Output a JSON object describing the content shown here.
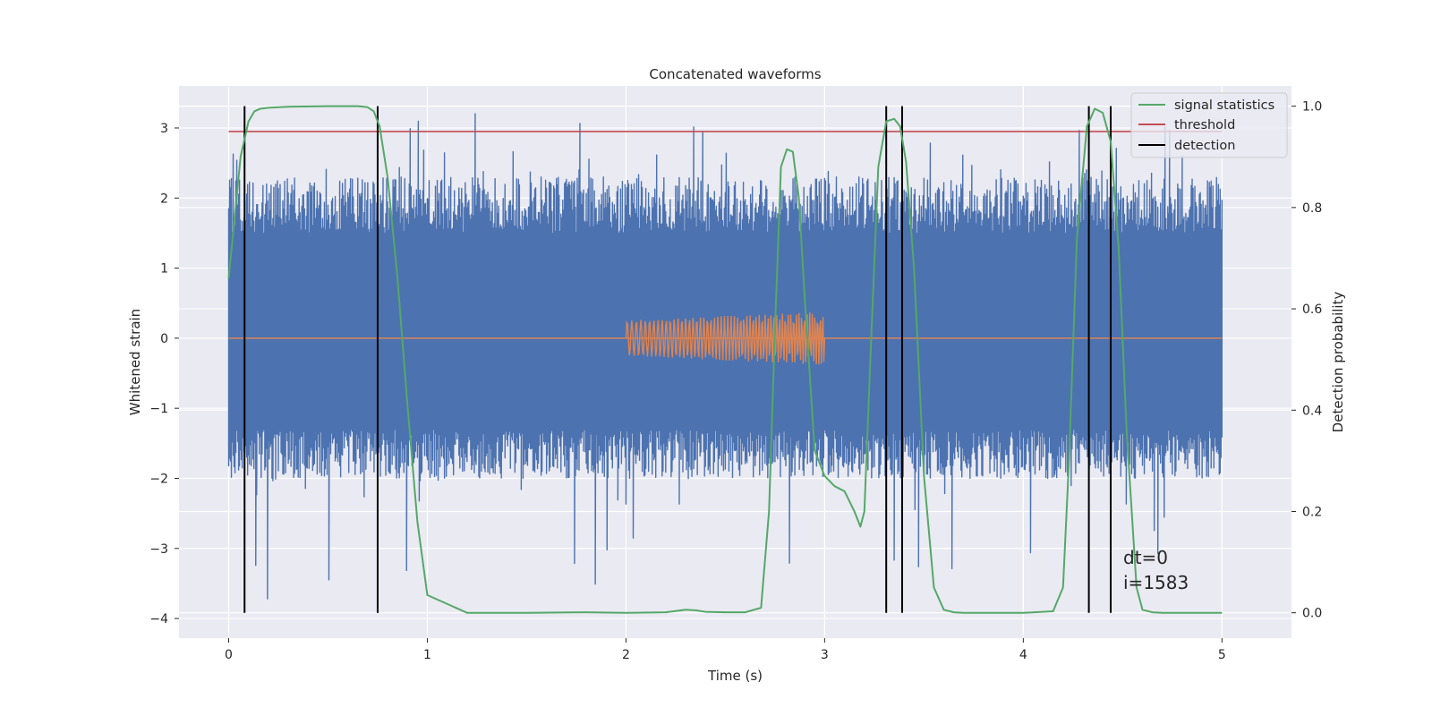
{
  "chart_data": {
    "type": "line",
    "title": "Concatenated waveforms",
    "xlabel": "Time (s)",
    "ylabel_left": "Whitened strain",
    "ylabel_right": "Detection probability",
    "xlim": [
      -0.25,
      5.35
    ],
    "ylim_left": [
      -4.28,
      3.6
    ],
    "ylim_right": [
      -0.05,
      1.04
    ],
    "x_ticks": [
      0,
      1,
      2,
      3,
      4,
      5
    ],
    "y_ticks_left": [
      -4,
      -3,
      -2,
      -1,
      0,
      1,
      2,
      3
    ],
    "y_ticks_right": [
      0.0,
      0.2,
      0.4,
      0.6,
      0.8,
      1.0
    ],
    "y_tick_labels_right": [
      "0.0",
      "0.2",
      "0.4",
      "0.6",
      "0.8",
      "1.0"
    ],
    "grid": true,
    "legend_position": "top-right",
    "legend": [
      {
        "label": "signal statistics",
        "color": "#55a868"
      },
      {
        "label": "threshold",
        "color": "#c44e52"
      },
      {
        "label": "detection",
        "color": "#000000"
      }
    ],
    "series": [
      {
        "name": "whitened strain (noise)",
        "axis": "left",
        "color": "#4c72b0",
        "x_range": [
          0,
          5
        ],
        "envelope_upper": 2.3,
        "envelope_lower": -2.0,
        "peak_max": 3.3,
        "peak_min": -3.9
      },
      {
        "name": "injected signal",
        "axis": "left",
        "color": "#dd8452",
        "x_range": [
          2.0,
          3.0
        ],
        "amplitude_start": 0.25,
        "amplitude_end": 0.38,
        "baseline_x": [
          0,
          5
        ],
        "baseline_y": 0
      },
      {
        "name": "signal statistics",
        "axis": "right",
        "color": "#55a868",
        "x": [
          0.0,
          0.03,
          0.06,
          0.1,
          0.13,
          0.16,
          0.2,
          0.3,
          0.5,
          0.65,
          0.7,
          0.73,
          0.76,
          0.8,
          0.85,
          0.9,
          0.95,
          1.0,
          1.2,
          1.5,
          1.8,
          2.0,
          2.2,
          2.3,
          2.35,
          2.4,
          2.5,
          2.6,
          2.68,
          2.72,
          2.75,
          2.78,
          2.81,
          2.84,
          2.87,
          2.9,
          2.95,
          3.0,
          3.05,
          3.1,
          3.15,
          3.18,
          3.2,
          3.23,
          3.27,
          3.31,
          3.35,
          3.38,
          3.41,
          3.45,
          3.5,
          3.55,
          3.6,
          3.65,
          3.7,
          4.0,
          4.15,
          4.2,
          4.23,
          4.27,
          4.32,
          4.36,
          4.4,
          4.44,
          4.48,
          4.52,
          4.57,
          4.6,
          4.65,
          4.7,
          5.0
        ],
        "y": [
          0.66,
          0.78,
          0.9,
          0.97,
          0.99,
          0.995,
          0.997,
          0.999,
          1.0,
          1.0,
          0.998,
          0.99,
          0.96,
          0.86,
          0.66,
          0.41,
          0.18,
          0.035,
          0.0,
          0.0,
          0.001,
          0.0,
          0.001,
          0.006,
          0.005,
          0.002,
          0.001,
          0.001,
          0.01,
          0.2,
          0.56,
          0.88,
          0.915,
          0.91,
          0.82,
          0.62,
          0.32,
          0.27,
          0.25,
          0.24,
          0.2,
          0.17,
          0.2,
          0.5,
          0.88,
          0.97,
          0.975,
          0.96,
          0.89,
          0.68,
          0.27,
          0.05,
          0.006,
          0.001,
          0.0,
          0.0,
          0.003,
          0.05,
          0.3,
          0.74,
          0.96,
          0.995,
          0.987,
          0.93,
          0.72,
          0.36,
          0.05,
          0.006,
          0.001,
          0.0,
          0.0
        ]
      },
      {
        "name": "threshold",
        "axis": "right",
        "color": "#c44e52",
        "x": [
          0,
          5
        ],
        "y": [
          0.95,
          0.95
        ]
      },
      {
        "name": "detection",
        "axis": "right",
        "color": "#000000",
        "x_positions": [
          0.08,
          0.75,
          3.31,
          3.39,
          4.33,
          4.44
        ],
        "y_range": [
          0,
          1
        ]
      }
    ],
    "annotations": [
      "dt=0",
      "i=1583"
    ]
  }
}
